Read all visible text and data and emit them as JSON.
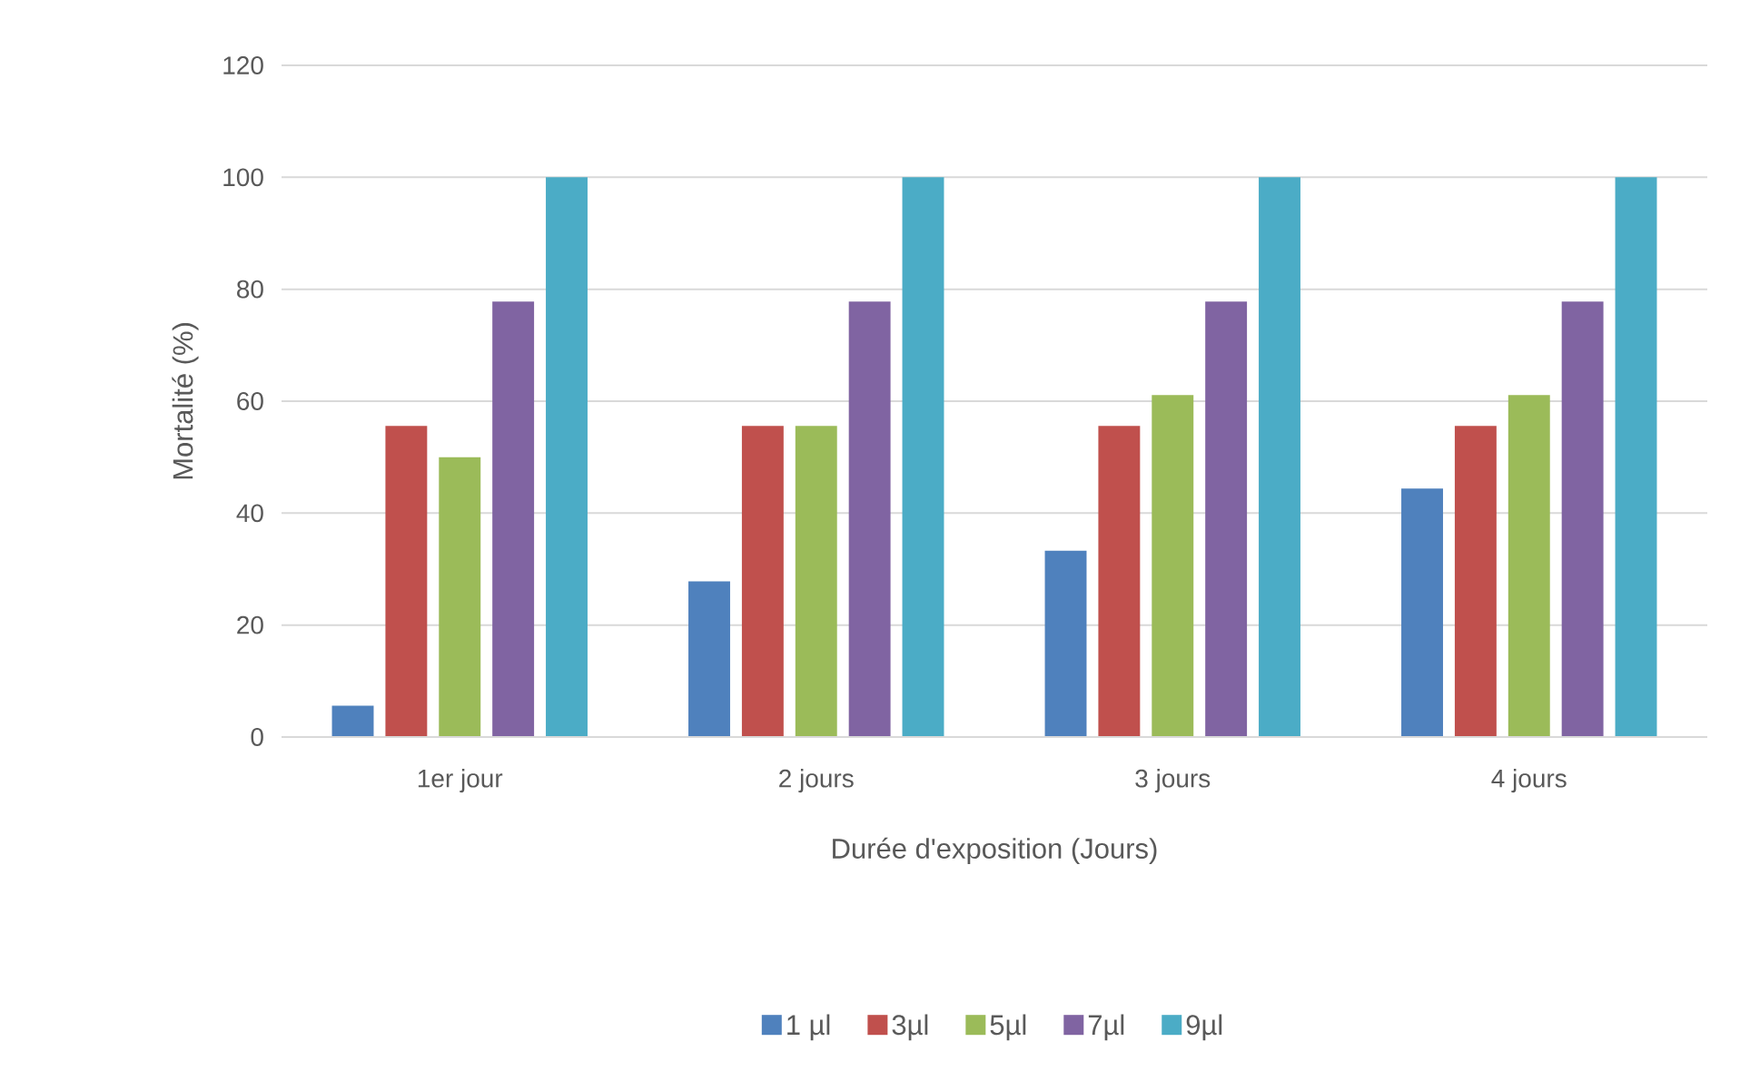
{
  "chart_data": {
    "type": "bar",
    "xlabel": "Durée d'exposition (Jours)",
    "ylabel": "Mortalité (%)",
    "categories": [
      "1er jour",
      "2 jours",
      "3 jours",
      "4 jours"
    ],
    "series": [
      {
        "name": "1 µl",
        "color": "#4f81bd",
        "values": [
          5.6,
          27.8,
          33.3,
          44.4
        ]
      },
      {
        "name": "3µl",
        "color": "#c0504d",
        "values": [
          55.6,
          55.6,
          55.6,
          55.6
        ]
      },
      {
        "name": "5µl",
        "color": "#9bbb59",
        "values": [
          50,
          55.6,
          61.1,
          61.1
        ]
      },
      {
        "name": "7µl",
        "color": "#8064a2",
        "values": [
          77.8,
          77.8,
          77.8,
          77.8
        ]
      },
      {
        "name": "9µl",
        "color": "#4bacc6",
        "values": [
          100,
          100,
          100,
          100
        ]
      }
    ],
    "ylim": [
      0,
      120
    ],
    "yticks": [
      0,
      20,
      40,
      60,
      80,
      100,
      120
    ],
    "grid": "y",
    "legend": "bottom"
  }
}
